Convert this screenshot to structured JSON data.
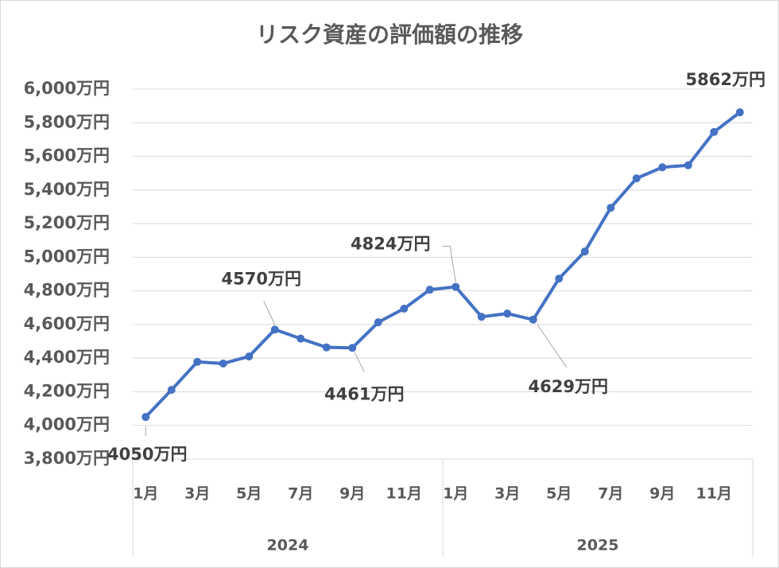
{
  "chart_data": {
    "type": "line",
    "title": "リスク資産の評価額の推移",
    "categories": [
      "1月",
      null,
      "3月",
      null,
      "5月",
      null,
      "7月",
      null,
      "9月",
      null,
      "11月",
      null,
      "1月",
      null,
      "3月",
      null,
      "5月",
      null,
      "7月",
      null,
      "9月",
      null,
      "11月",
      null
    ],
    "x_groups": [
      "2024",
      "2025"
    ],
    "values": [
      4050,
      4211,
      4378,
      4368,
      4410,
      4570,
      4516,
      4464,
      4461,
      4613,
      4694,
      4807,
      4824,
      4646,
      4665,
      4629,
      4873,
      5034,
      5294,
      5469,
      5535,
      5547,
      5745,
      5862
    ],
    "value_labels": [
      "4050万円",
      null,
      null,
      null,
      null,
      "4570万円",
      null,
      null,
      "4461万円",
      null,
      null,
      null,
      "4824万円",
      null,
      null,
      "4629万円",
      null,
      null,
      null,
      null,
      null,
      null,
      null,
      "5862万円"
    ],
    "color": "#4472c4",
    "ylim": [
      3800,
      6000
    ],
    "yticks": [
      {
        "value": 3800,
        "label": "3,800万円"
      },
      {
        "value": 4000,
        "label": "4,000万円"
      },
      {
        "value": 4200,
        "label": "4,200万円"
      },
      {
        "value": 4400,
        "label": "4,400万円"
      },
      {
        "value": 4600,
        "label": "4,600万円"
      },
      {
        "value": 4800,
        "label": "4,800万円"
      },
      {
        "value": 5000,
        "label": "5,000万円"
      },
      {
        "value": 5200,
        "label": "5,200万円"
      },
      {
        "value": 5400,
        "label": "5,400万円"
      },
      {
        "value": 5600,
        "label": "5,600万円"
      },
      {
        "value": 5800,
        "label": "5,800万円"
      },
      {
        "value": 6000,
        "label": "6,000万円"
      }
    ],
    "grid": true
  }
}
